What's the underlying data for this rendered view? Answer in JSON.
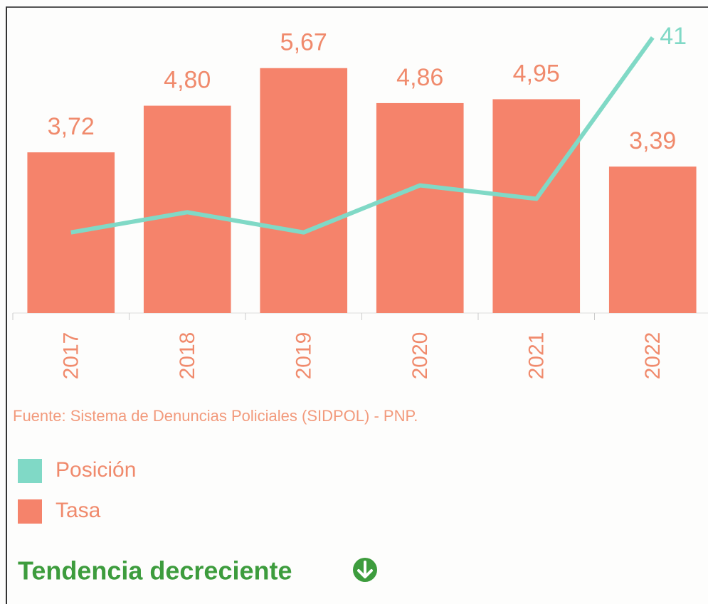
{
  "chart_data": {
    "type": "bar",
    "categories": [
      "2017",
      "2018",
      "2019",
      "2020",
      "2021",
      "2022"
    ],
    "series": [
      {
        "name": "Posición",
        "type": "line",
        "axis": "y2",
        "color": "#80d9c6",
        "values": [
          12,
          15,
          12,
          19,
          17,
          41
        ],
        "label_last": true
      },
      {
        "name": "Tasa",
        "type": "bar",
        "axis": "y",
        "color": "#f5836b",
        "values": [
          3.72,
          4.8,
          5.67,
          4.86,
          4.95,
          3.39
        ],
        "value_labels": [
          "3,72",
          "4,80",
          "5,67",
          "4,86",
          "4,95",
          "3,39"
        ]
      }
    ],
    "ylim": [
      0,
      7
    ],
    "y2lim": [
      0,
      45
    ],
    "source": "Fuente: Sistema de Denuncias Policiales (SIDPOL) - PNP.",
    "trend": "Tendencia decreciente"
  }
}
